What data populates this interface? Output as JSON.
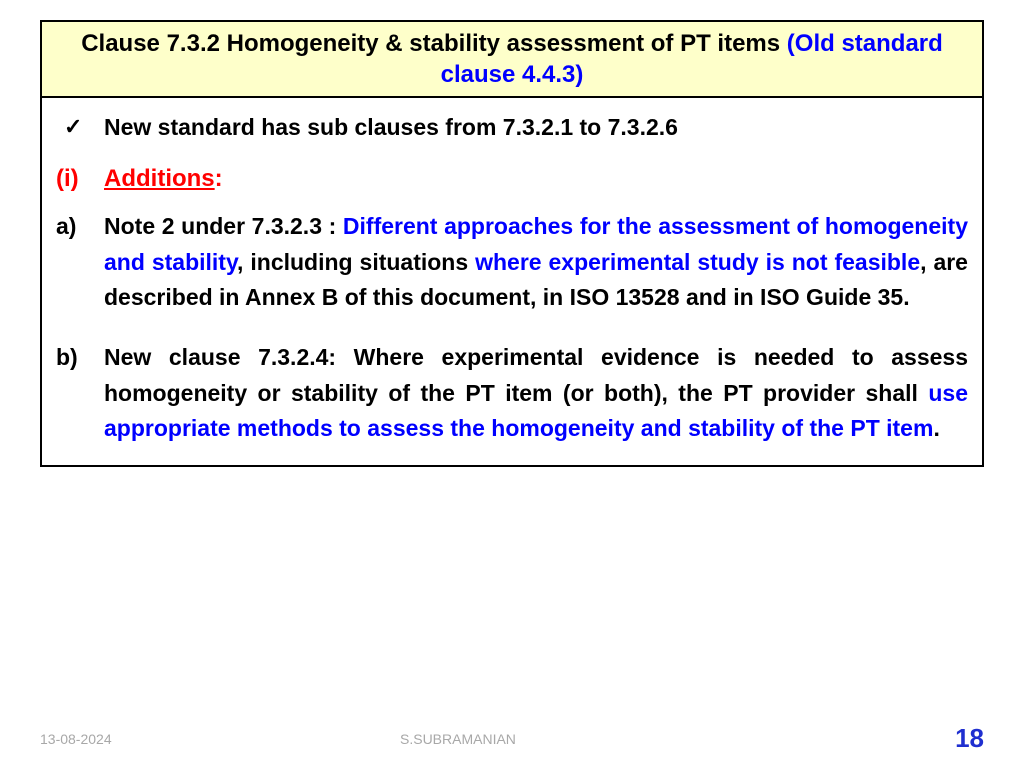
{
  "title": {
    "main": "Clause 7.3.2 Homogeneity & stability assessment of PT items ",
    "old": " (Old standard clause 4.4.3)"
  },
  "check": {
    "mark": "✓",
    "text": "New standard has sub clauses from 7.3.2.1 to 7.3.2.6"
  },
  "roman": {
    "marker": "(i)",
    "label": "Additions",
    "colon": ":"
  },
  "item_a": {
    "marker": "a)",
    "lead": "Note 2 under 7.3.2.3 : ",
    "blue1": "Different approaches for the assessment of homogeneity and stability",
    "mid1": ", including situations ",
    "blue2": "where experimental study is not feasible",
    "tail": ", are described in Annex B of this document, in ISO 13528 and in ISO Guide 35."
  },
  "item_b": {
    "marker": "b)",
    "lead": "New clause 7.3.2.4:  Where experimental evidence is needed to assess homogeneity or stability of the PT item (or both), the PT provider shall ",
    "blue1": "use appropriate methods to assess the homogeneity and stability of the PT item",
    "tail": "."
  },
  "footer": {
    "date": "13-08-2024",
    "author": "S.SUBRAMANIAN",
    "page": "18"
  },
  "colors": {
    "title_bg": "#feffca",
    "blue": "#0000ff",
    "red": "#ff0000",
    "footer_gray": "#a8a8a8",
    "page_color": "#1f2fd0"
  }
}
